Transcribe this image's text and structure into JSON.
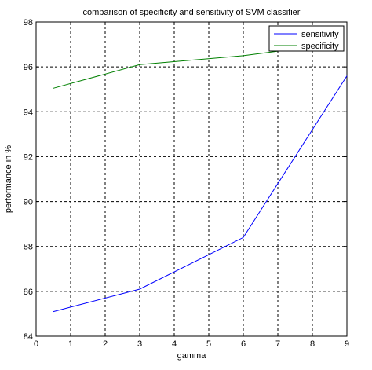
{
  "chart_data": {
    "type": "line",
    "title": "comparison of specificity and sensitivity of SVM classifier",
    "xlabel": "gamma",
    "ylabel": "performance in %",
    "xlim": [
      0,
      9
    ],
    "ylim": [
      84,
      98
    ],
    "xticks": [
      0,
      1,
      2,
      3,
      4,
      5,
      6,
      7,
      8,
      9
    ],
    "yticks": [
      84,
      86,
      88,
      90,
      92,
      94,
      96,
      98
    ],
    "grid": true,
    "legend_position": "top-right",
    "series": [
      {
        "name": "sensitivity",
        "color": "#0000ff",
        "x": [
          0.5,
          3,
          6,
          7,
          8,
          9
        ],
        "y": [
          85.1,
          86.1,
          88.4,
          90.8,
          93.2,
          95.6
        ]
      },
      {
        "name": "specificity",
        "color": "#008000",
        "x": [
          0.5,
          3,
          6,
          7
        ],
        "y": [
          95.05,
          96.1,
          96.5,
          96.7
        ]
      }
    ]
  }
}
